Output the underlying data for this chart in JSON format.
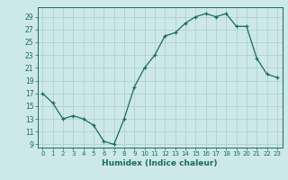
{
  "x": [
    0,
    1,
    2,
    3,
    4,
    5,
    6,
    7,
    8,
    9,
    10,
    11,
    12,
    13,
    14,
    15,
    16,
    17,
    18,
    19,
    20,
    21,
    22,
    23
  ],
  "y": [
    17,
    15.5,
    13,
    13.5,
    13,
    12,
    9.5,
    9,
    13,
    18,
    21,
    23,
    26,
    26.5,
    28,
    29,
    29.5,
    29,
    29.5,
    27.5,
    27.5,
    22.5,
    20,
    19.5
  ],
  "line_color": "#1a6b5a",
  "marker": "+",
  "bg_color": "#cde8e8",
  "grid_color": "#b0d0d0",
  "tick_color": "#1a6b5a",
  "xlabel": "Humidex (Indice chaleur)",
  "xlim": [
    -0.5,
    23.5
  ],
  "ylim": [
    8.5,
    30.5
  ],
  "yticks": [
    9,
    11,
    13,
    15,
    17,
    19,
    21,
    23,
    25,
    27,
    29
  ],
  "xticks": [
    0,
    1,
    2,
    3,
    4,
    5,
    6,
    7,
    8,
    9,
    10,
    11,
    12,
    13,
    14,
    15,
    16,
    17,
    18,
    19,
    20,
    21,
    22,
    23
  ]
}
